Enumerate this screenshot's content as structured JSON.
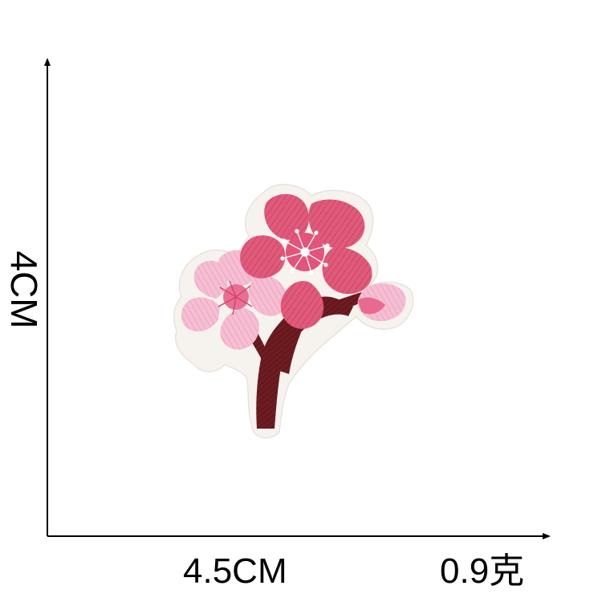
{
  "measurements": {
    "height": "4CM",
    "width": "4.5CM",
    "weight": "0.9克"
  },
  "product": {
    "subject": "cherry-blossom-embroidered-patch",
    "colors": {
      "dark_pink_petals": "#e0577a",
      "light_pink_petals": "#f4b8cf",
      "branch": "#6b1a1f",
      "border": "#f7f3ef",
      "axis": "#000000"
    }
  }
}
